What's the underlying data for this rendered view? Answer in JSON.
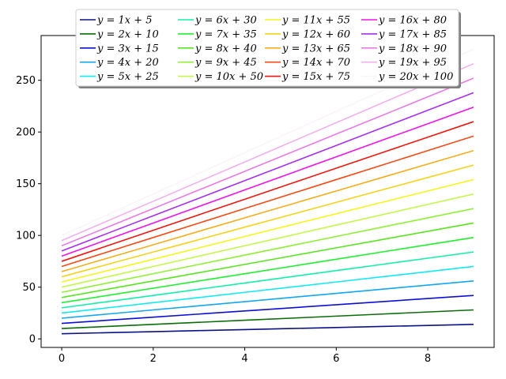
{
  "chart_data": {
    "type": "line",
    "title": "",
    "xlabel": "",
    "ylabel": "",
    "x": [
      0,
      1,
      2,
      3,
      4,
      5,
      6,
      7,
      8,
      9
    ],
    "xlim": [
      -0.45,
      9.45
    ],
    "ylim": [
      -8.25,
      293.25
    ],
    "xticks": [
      0,
      2,
      4,
      6,
      8
    ],
    "yticks": [
      0,
      50,
      100,
      150,
      200,
      250
    ],
    "grid": false,
    "legend": {
      "position": "top-center",
      "columns": 4
    },
    "series": [
      {
        "name": "y = 1x + 5",
        "slope": 1,
        "intercept": 5,
        "color": "#0c1186"
      },
      {
        "name": "y = 2x + 10",
        "slope": 2,
        "intercept": 10,
        "color": "#0a6d0a"
      },
      {
        "name": "y = 3x + 15",
        "slope": 3,
        "intercept": 15,
        "color": "#0c0fd4"
      },
      {
        "name": "y = 4x + 20",
        "slope": 4,
        "intercept": 20,
        "color": "#11a7f3"
      },
      {
        "name": "y = 5x + 25",
        "slope": 5,
        "intercept": 25,
        "color": "#11e9f3"
      },
      {
        "name": "y = 6x + 30",
        "slope": 6,
        "intercept": 30,
        "color": "#11f0a9"
      },
      {
        "name": "y = 7x + 35",
        "slope": 7,
        "intercept": 35,
        "color": "#1ff02f"
      },
      {
        "name": "y = 8x + 40",
        "slope": 8,
        "intercept": 40,
        "color": "#59e61e"
      },
      {
        "name": "y = 9x + 45",
        "slope": 9,
        "intercept": 45,
        "color": "#90f033"
      },
      {
        "name": "y = 10x + 50",
        "slope": 10,
        "intercept": 50,
        "color": "#c4f74a"
      },
      {
        "name": "y = 11x + 55",
        "slope": 11,
        "intercept": 55,
        "color": "#f6f41d"
      },
      {
        "name": "y = 12x + 60",
        "slope": 12,
        "intercept": 60,
        "color": "#f6d21a"
      },
      {
        "name": "y = 13x + 65",
        "slope": 13,
        "intercept": 65,
        "color": "#f7ad1a"
      },
      {
        "name": "y = 14x + 70",
        "slope": 14,
        "intercept": 70,
        "color": "#f74a14"
      },
      {
        "name": "y = 15x + 75",
        "slope": 15,
        "intercept": 75,
        "color": "#f0150f"
      },
      {
        "name": "y = 16x + 80",
        "slope": 16,
        "intercept": 80,
        "color": "#f012e8"
      },
      {
        "name": "y = 17x + 85",
        "slope": 17,
        "intercept": 85,
        "color": "#a631f0"
      },
      {
        "name": "y = 18x + 90",
        "slope": 18,
        "intercept": 90,
        "color": "#e97be6"
      },
      {
        "name": "y = 19x + 95",
        "slope": 19,
        "intercept": 95,
        "color": "#f2b1ee"
      },
      {
        "name": "y = 20x + 100",
        "slope": 20,
        "intercept": 100,
        "color": "#fbf4fb"
      }
    ]
  }
}
